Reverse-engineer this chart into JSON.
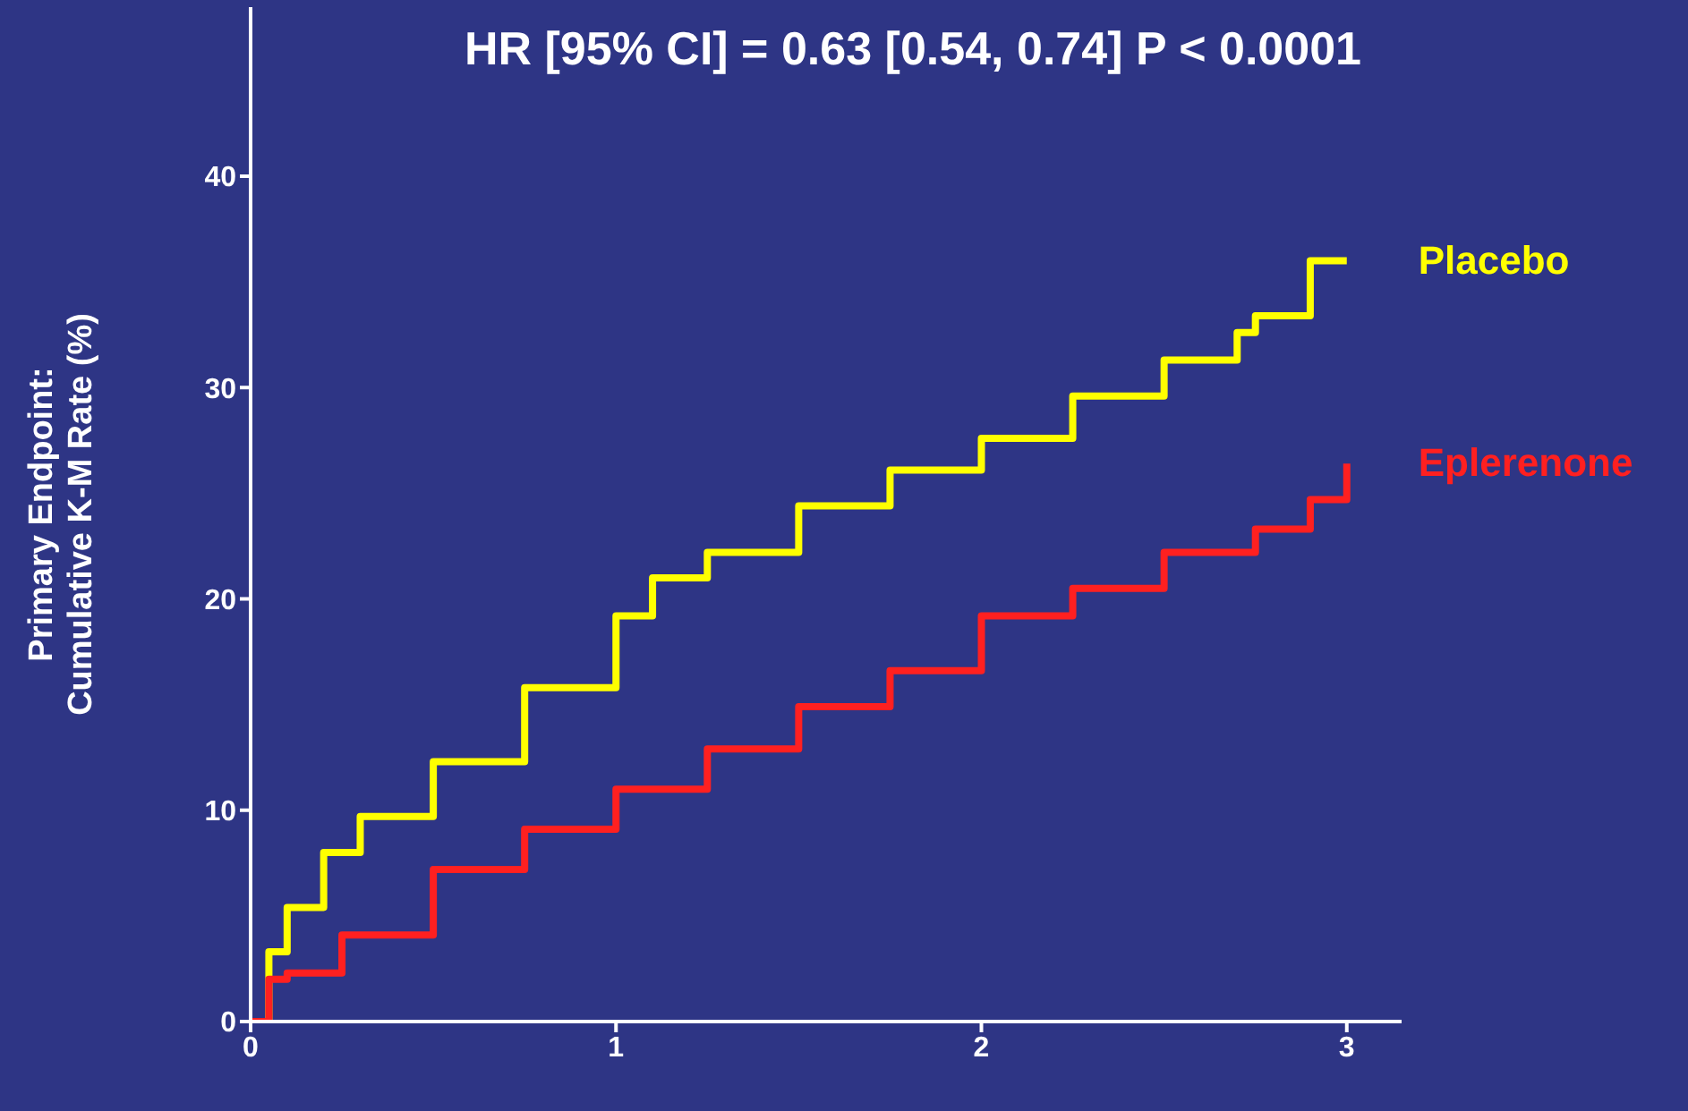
{
  "chart_data": {
    "type": "step",
    "title": "HR [95% CI] = 0.63 [0.54, 0.74] P < 0.0001",
    "ylabel": "Primary Endpoint:\nCumulative K-M Rate (%)",
    "xlim": [
      0,
      3.15
    ],
    "xticks": [
      0,
      1,
      2,
      3
    ],
    "ylim": [
      0,
      48
    ],
    "yticks": [
      0,
      10,
      20,
      30,
      40
    ],
    "grid": false,
    "legend": false,
    "marker": "none",
    "series": [
      {
        "name": "Placebo",
        "color": "#ffff00",
        "x": [
          0,
          0.05,
          0.1,
          0.2,
          0.3,
          0.5,
          0.75,
          1.0,
          1.1,
          1.25,
          1.5,
          1.75,
          2.0,
          2.25,
          2.5,
          2.7,
          2.75,
          2.9,
          3.0
        ],
        "values": [
          0,
          3.3,
          5.4,
          8,
          9.7,
          12.3,
          15.8,
          19.2,
          21,
          22.2,
          24.4,
          26.1,
          27.6,
          29.6,
          31.3,
          32.6,
          33.4,
          36,
          36
        ]
      },
      {
        "name": "Eplerenone",
        "color": "#ff2020",
        "x": [
          0,
          0.05,
          0.1,
          0.25,
          0.5,
          0.75,
          1.0,
          1.25,
          1.5,
          1.75,
          2.0,
          2.25,
          2.5,
          2.75,
          2.9,
          3.0
        ],
        "values": [
          0,
          2,
          2.3,
          4.1,
          7.2,
          9.1,
          11,
          12.9,
          14.9,
          16.6,
          19.2,
          20.5,
          22.2,
          23.3,
          24.7,
          26.4
        ]
      }
    ]
  }
}
